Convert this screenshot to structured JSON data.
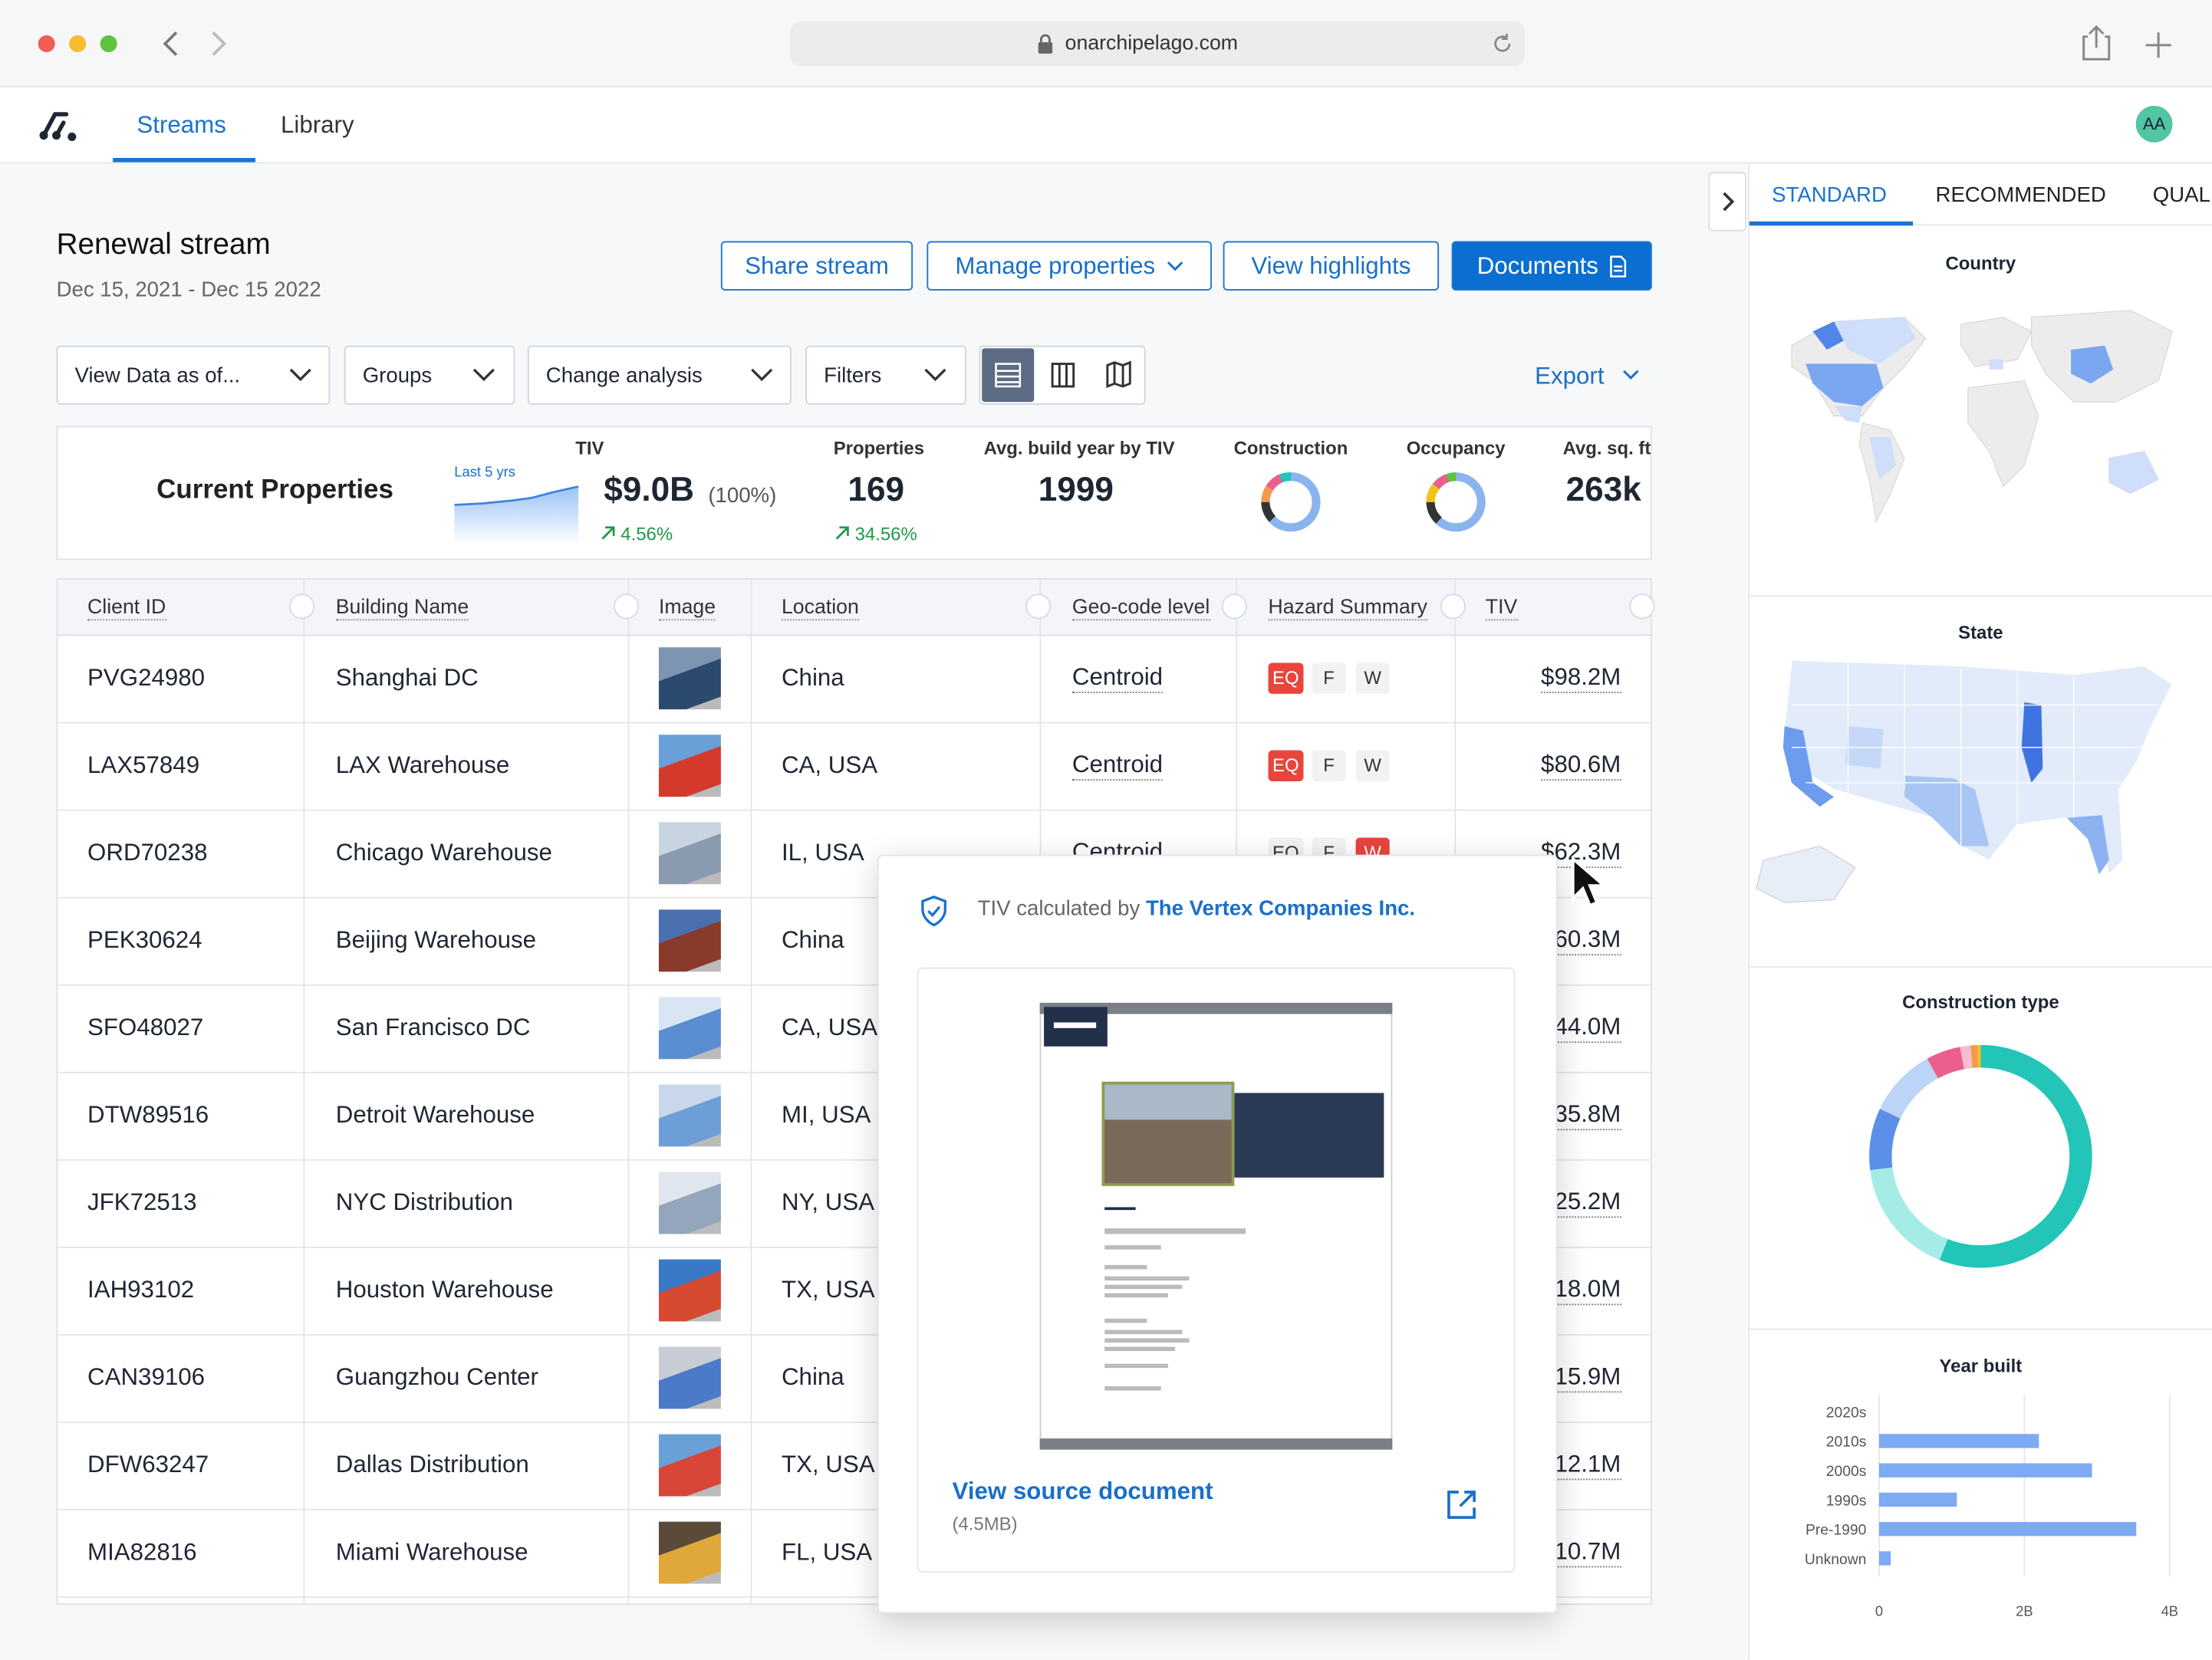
{
  "browser": {
    "url": "onarchipelago.com"
  },
  "nav": {
    "tabs": [
      "Streams",
      "Library"
    ],
    "avatar": "AA"
  },
  "stream": {
    "title": "Renewal stream",
    "dates": "Dec 15, 2021 - Dec 15 2022",
    "buttons": [
      "Share stream",
      "Manage properties",
      "View highlights",
      "Documents"
    ]
  },
  "toolbar": {
    "dropdowns": [
      "View Data as of...",
      "Groups",
      "Change analysis",
      "Filters"
    ],
    "export": "Export"
  },
  "summary": {
    "title": "Current Properties",
    "sparkline_label": "Last 5 yrs",
    "tiv": {
      "label": "TIV",
      "value": "$9.0B",
      "share": "(100%)",
      "change": "4.56%"
    },
    "properties": {
      "label": "Properties",
      "value": "169",
      "change": "34.56%"
    },
    "build_year": {
      "label": "Avg. build year by TIV",
      "value": "1999"
    },
    "construction": {
      "label": "Construction"
    },
    "occupancy": {
      "label": "Occupancy"
    },
    "sqft": {
      "label": "Avg. sq. ft",
      "value": "263k"
    }
  },
  "table": {
    "columns": [
      "Client ID",
      "Building Name",
      "Image",
      "Location",
      "Geo-code level",
      "Hazard Summary",
      "TIV"
    ],
    "rows": [
      {
        "client_id": "PVG24980",
        "building": "Shanghai DC",
        "location": "China",
        "geocode": "Centroid",
        "hazards": [
          {
            "label": "EQ",
            "alert": true
          },
          {
            "label": "F",
            "alert": false
          },
          {
            "label": "W",
            "alert": false
          }
        ],
        "tiv": "$98.2M"
      },
      {
        "client_id": "LAX57849",
        "building": "LAX Warehouse",
        "location": "CA, USA",
        "geocode": "Centroid",
        "hazards": [
          {
            "label": "EQ",
            "alert": true
          },
          {
            "label": "F",
            "alert": false
          },
          {
            "label": "W",
            "alert": false
          }
        ],
        "tiv": "$80.6M"
      },
      {
        "client_id": "ORD70238",
        "building": "Chicago Warehouse",
        "location": "IL, USA",
        "geocode": "Centroid",
        "hazards": [
          {
            "label": "EQ",
            "alert": false
          },
          {
            "label": "F",
            "alert": false
          },
          {
            "label": "W",
            "alert": true
          }
        ],
        "tiv": "$62.3M"
      },
      {
        "client_id": "PEK30624",
        "building": "Beijing Warehouse",
        "location": "China",
        "tiv": "$60.3M"
      },
      {
        "client_id": "SFO48027",
        "building": "San Francisco DC",
        "location": "CA, USA",
        "tiv": "$44.0M"
      },
      {
        "client_id": "DTW89516",
        "building": "Detroit Warehouse",
        "location": "MI, USA",
        "tiv": "$35.8M"
      },
      {
        "client_id": "JFK72513",
        "building": "NYC Distribution",
        "location": "NY, USA",
        "tiv": "$25.2M"
      },
      {
        "client_id": "IAH93102",
        "building": "Houston Warehouse",
        "location": "TX, USA",
        "tiv": "$18.0M"
      },
      {
        "client_id": "CAN39106",
        "building": "Guangzhou Center",
        "location": "China",
        "tiv": "$15.9M"
      },
      {
        "client_id": "DFW63247",
        "building": "Dallas Distribution",
        "location": "TX, USA",
        "tiv": "$12.1M"
      },
      {
        "client_id": "MIA82816",
        "building": "Miami Warehouse",
        "location": "FL, USA",
        "tiv": "$10.7M"
      }
    ]
  },
  "popover": {
    "prefix": "TIV calculated by",
    "source": "The Vertex Companies Inc.",
    "link": "View source document",
    "size": "(4.5MB)"
  },
  "panel": {
    "tabs": [
      "STANDARD",
      "RECOMMENDED",
      "QUAL"
    ],
    "country": "Country",
    "state": "State"
  },
  "construction_type": {
    "type": "pie",
    "title": "Construction type",
    "values": [
      56,
      17,
      9,
      10,
      5,
      1.5,
      1,
      0.5
    ],
    "colors": [
      "#22c5b8",
      "#a6ece6",
      "#5b8fe8",
      "#bcd4f7",
      "#ec5f8d",
      "#f8bcd0",
      "#f29a4a",
      "#f2c31a"
    ]
  },
  "year_built": {
    "type": "bar",
    "title": "Year built",
    "categories": [
      "2020s",
      "2010s",
      "2000s",
      "1990s",
      "Pre-1990",
      "Unknown"
    ],
    "values": [
      0,
      2200000000,
      2930000000,
      1070000000,
      3540000000,
      160000000
    ],
    "color": "#7ea9f3",
    "xlim": [
      0,
      4000000000
    ],
    "xticks": [
      0,
      {
        "value": 2000000000,
        "label": "2B"
      },
      {
        "value": 4000000000,
        "label": "4B"
      }
    ],
    "grid": true
  }
}
